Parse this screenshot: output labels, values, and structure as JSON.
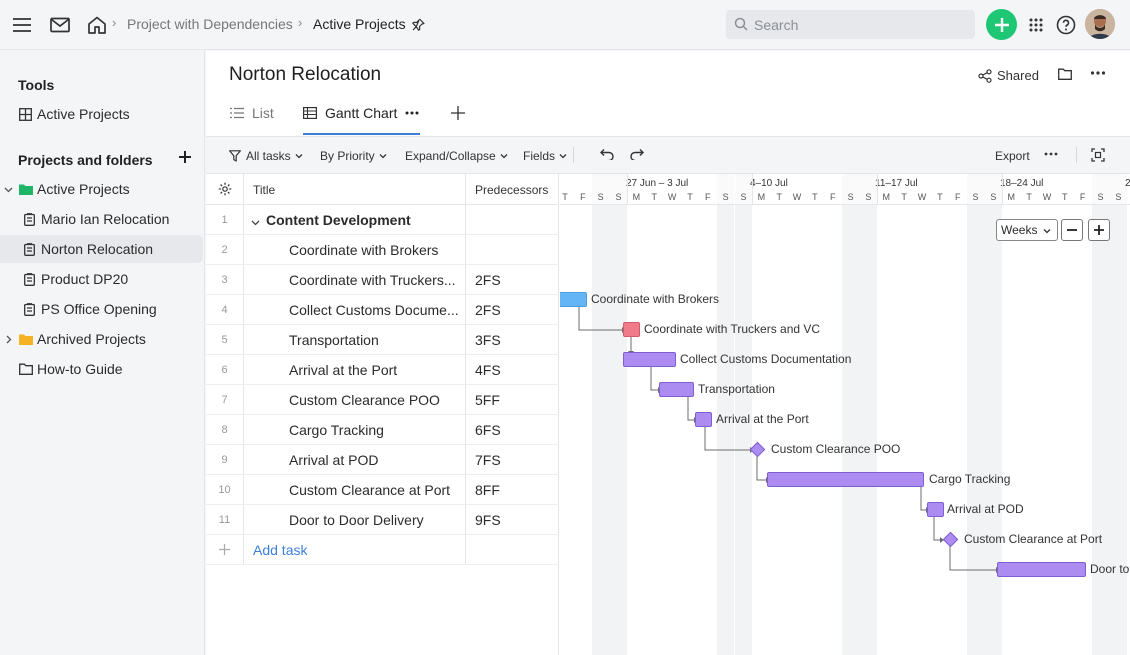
{
  "topbar": {
    "breadcrumb_parent": "Project with Dependencies",
    "breadcrumb_current": "Active Projects",
    "search_placeholder": "Search"
  },
  "sidebar": {
    "tools_heading": "Tools",
    "tools_item": "Active Projects",
    "projects_heading": "Projects and folders",
    "tree": [
      "Active Projects",
      "Mario Ian Relocation",
      "Norton Relocation",
      "Product DP20",
      "PS Office Opening",
      "Archived Projects",
      "How-to Guide"
    ]
  },
  "header": {
    "title": "Norton Relocation",
    "shared_label": "Shared"
  },
  "tabs": {
    "list": "List",
    "gantt": "Gantt Chart"
  },
  "toolbar": {
    "all_tasks": "All tasks",
    "by_priority": "By Priority",
    "expand_collapse": "Expand/Collapse",
    "fields": "Fields",
    "export": "Export"
  },
  "grid": {
    "col_title": "Title",
    "col_predecessors": "Predecessors",
    "rows": [
      {
        "num": "1",
        "title": "Content Development",
        "pred": ""
      },
      {
        "num": "2",
        "title": "Coordinate with Brokers",
        "pred": ""
      },
      {
        "num": "3",
        "title": "Coordinate with Truckers...",
        "pred": "2FS"
      },
      {
        "num": "4",
        "title": "Collect Customs Docume...",
        "pred": "2FS"
      },
      {
        "num": "5",
        "title": "Transportation",
        "pred": "3FS"
      },
      {
        "num": "6",
        "title": "Arrival at the Port",
        "pred": "4FS"
      },
      {
        "num": "7",
        "title": "Custom Clearance POO",
        "pred": "5FF"
      },
      {
        "num": "8",
        "title": "Cargo Tracking",
        "pred": "6FS"
      },
      {
        "num": "9",
        "title": "Arrival at POD",
        "pred": "7FS"
      },
      {
        "num": "10",
        "title": "Custom Clearance at Port",
        "pred": "8FF"
      },
      {
        "num": "11",
        "title": "Door to Door Delivery",
        "pred": "9FS"
      }
    ],
    "add_task": "Add task"
  },
  "gantt": {
    "weeks": [
      "27 Jun – 3 Jul",
      "4–10 Jul",
      "11–17 Jul",
      "18–24 Jul",
      "2"
    ],
    "days_first": [
      "T",
      "F",
      "S",
      "S"
    ],
    "days_week": [
      "M",
      "T",
      "W",
      "T",
      "F",
      "S",
      "S"
    ],
    "zoom_value": "Weeks",
    "bar_labels": [
      "Coordinate with Brokers",
      "Coordinate with Truckers and VC",
      "Collect Customs Documentation",
      "Transportation",
      "Arrival at the Port",
      "Custom Clearance POO",
      "Cargo Tracking",
      "Arrival at POD",
      "Custom Clearance at Port",
      "Door to"
    ],
    "colors": {
      "blue": "#64b5f6",
      "red": "#f07a8a",
      "purple": "#ac8cf0"
    }
  },
  "icons": [
    "menu-icon",
    "mail-icon",
    "home-icon",
    "pin-icon",
    "search-icon",
    "plus-icon",
    "apps-grid-icon",
    "help-icon",
    "share-icon",
    "folder-icon",
    "more-icon",
    "list-icon",
    "gantt-icon",
    "filter-icon",
    "undo-icon",
    "redo-icon",
    "fullscreen-icon",
    "settings-icon"
  ]
}
